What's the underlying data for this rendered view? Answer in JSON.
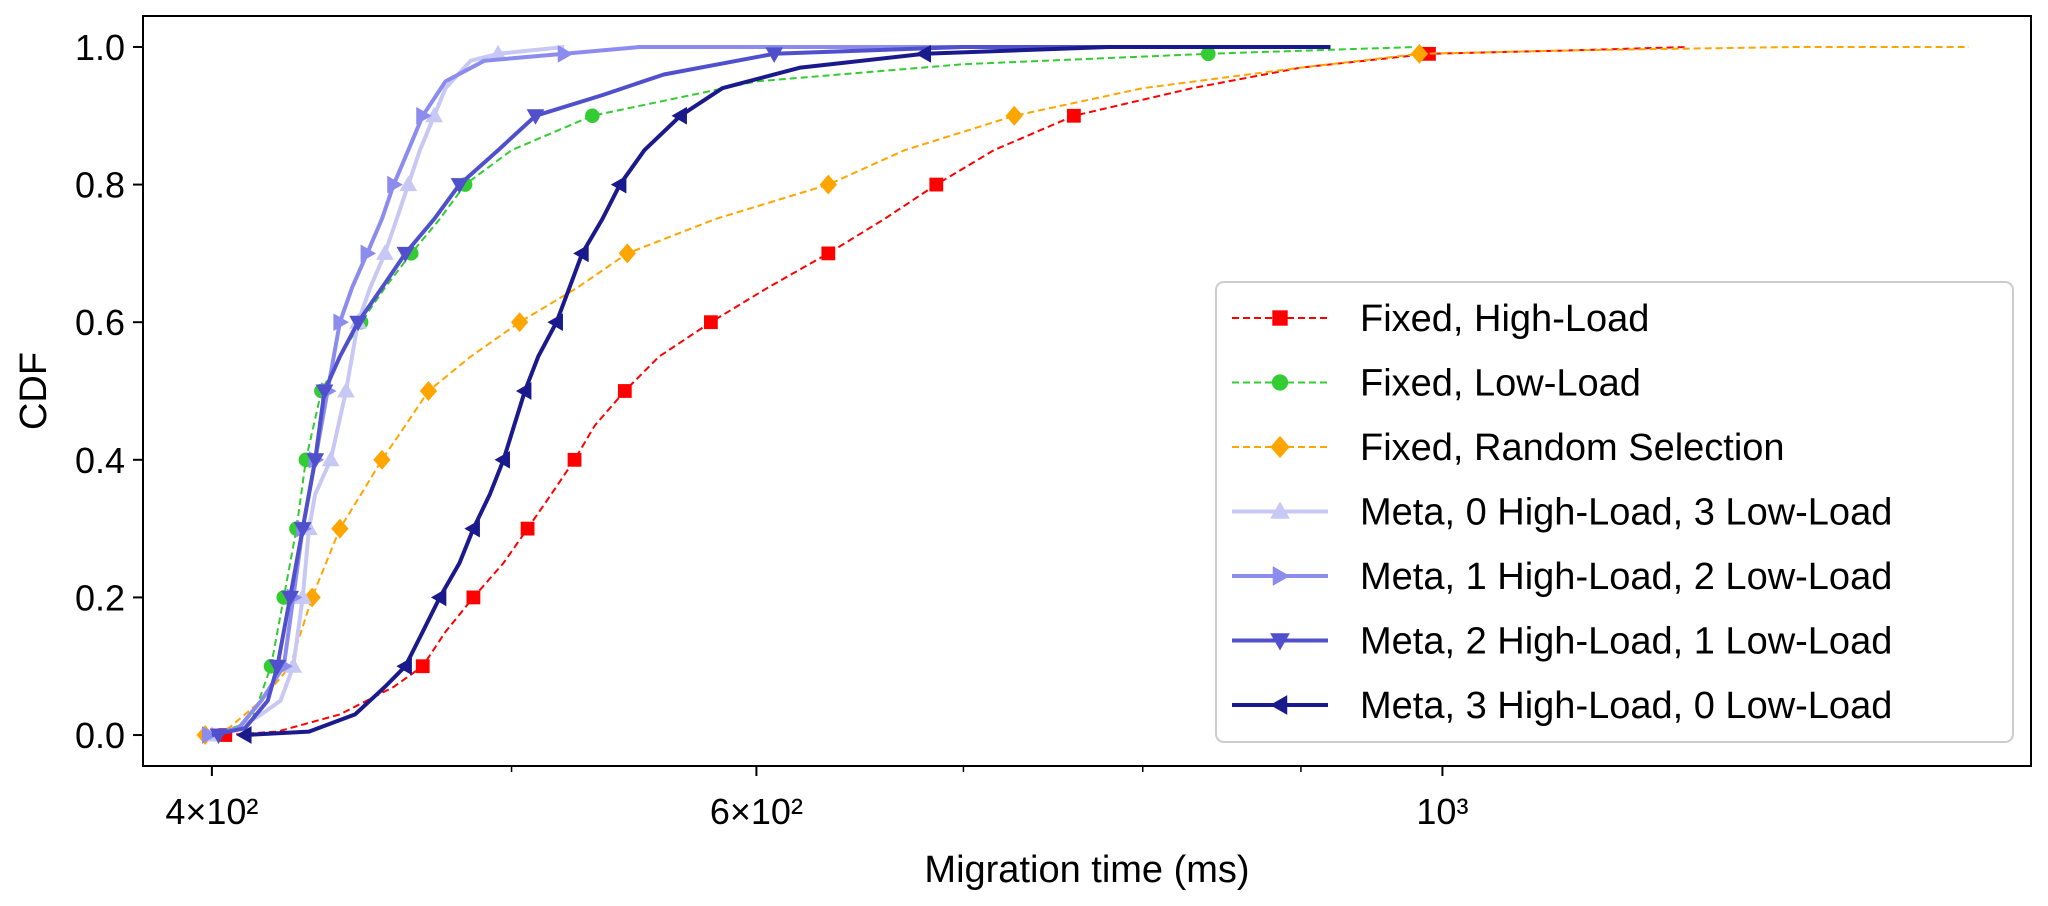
{
  "chart_data": {
    "type": "line",
    "title": "",
    "xlabel": "Migration time (ms)",
    "ylabel": "CDF",
    "xscale": "log",
    "xlim": [
      380,
      1550
    ],
    "ylim": [
      -0.045,
      1.045
    ],
    "grid": false,
    "legend_position": "center-right",
    "x_ticks": [
      {
        "value": 400,
        "label": "4×10²"
      },
      {
        "value": 600,
        "label": "6×10²"
      },
      {
        "value": 1000,
        "label": "10³"
      }
    ],
    "x_minor_ticks": [
      500,
      700,
      800,
      900
    ],
    "y_ticks": [
      {
        "value": 0.0,
        "label": "0.0"
      },
      {
        "value": 0.2,
        "label": "0.2"
      },
      {
        "value": 0.4,
        "label": "0.4"
      },
      {
        "value": 0.6,
        "label": "0.6"
      },
      {
        "value": 0.8,
        "label": "0.8"
      },
      {
        "value": 1.0,
        "label": "1.0"
      }
    ],
    "series": [
      {
        "name": "Fixed, High-Load",
        "color": "#ff0000",
        "dashed": true,
        "linewidth": 2,
        "marker": "square",
        "points": [
          [
            404,
            0
          ],
          [
            420,
            0.005
          ],
          [
            440,
            0.03
          ],
          [
            458,
            0.07
          ],
          [
            468,
            0.1
          ],
          [
            476,
            0.15
          ],
          [
            486,
            0.2
          ],
          [
            497,
            0.25
          ],
          [
            506,
            0.3
          ],
          [
            515,
            0.35
          ],
          [
            524,
            0.4
          ],
          [
            532,
            0.45
          ],
          [
            544,
            0.5
          ],
          [
            558,
            0.55
          ],
          [
            580,
            0.6
          ],
          [
            605,
            0.65
          ],
          [
            633,
            0.7
          ],
          [
            660,
            0.75
          ],
          [
            686,
            0.8
          ],
          [
            716,
            0.85
          ],
          [
            760,
            0.9
          ],
          [
            830,
            0.94
          ],
          [
            900,
            0.97
          ],
          [
            990,
            0.99
          ],
          [
            1100,
            0.995
          ],
          [
            1200,
            1.0
          ]
        ],
        "markers": [
          [
            404,
            0
          ],
          [
            468,
            0.1
          ],
          [
            486,
            0.2
          ],
          [
            506,
            0.3
          ],
          [
            524,
            0.4
          ],
          [
            544,
            0.5
          ],
          [
            580,
            0.6
          ],
          [
            633,
            0.7
          ],
          [
            686,
            0.8
          ],
          [
            760,
            0.9
          ],
          [
            990,
            0.99
          ]
        ]
      },
      {
        "name": "Fixed, Low-Load",
        "color": "#33cc33",
        "dashed": true,
        "linewidth": 2,
        "marker": "circle",
        "points": [
          [
            400,
            0
          ],
          [
            412,
            0.02
          ],
          [
            418,
            0.1
          ],
          [
            422,
            0.2
          ],
          [
            426,
            0.3
          ],
          [
            429,
            0.4
          ],
          [
            434,
            0.5
          ],
          [
            440,
            0.55
          ],
          [
            447,
            0.6
          ],
          [
            455,
            0.65
          ],
          [
            464,
            0.7
          ],
          [
            474,
            0.75
          ],
          [
            483,
            0.8
          ],
          [
            500,
            0.85
          ],
          [
            531,
            0.9
          ],
          [
            600,
            0.95
          ],
          [
            700,
            0.975
          ],
          [
            840,
            0.99
          ],
          [
            980,
            1.0
          ]
        ],
        "markers": [
          [
            418,
            0.1
          ],
          [
            422,
            0.2
          ],
          [
            426,
            0.3
          ],
          [
            429,
            0.4
          ],
          [
            434,
            0.5
          ],
          [
            447,
            0.6
          ],
          [
            464,
            0.7
          ],
          [
            483,
            0.8
          ],
          [
            531,
            0.9
          ],
          [
            840,
            0.99
          ]
        ]
      },
      {
        "name": "Fixed, Random Selection",
        "color": "#ffa500",
        "dashed": true,
        "linewidth": 2,
        "marker": "diamond",
        "points": [
          [
            398,
            0
          ],
          [
            405,
            0.01
          ],
          [
            415,
            0.05
          ],
          [
            424,
            0.1
          ],
          [
            431,
            0.2
          ],
          [
            440,
            0.3
          ],
          [
            447,
            0.35
          ],
          [
            454,
            0.4
          ],
          [
            462,
            0.45
          ],
          [
            470,
            0.5
          ],
          [
            485,
            0.55
          ],
          [
            503,
            0.6
          ],
          [
            525,
            0.65
          ],
          [
            545,
            0.7
          ],
          [
            582,
            0.75
          ],
          [
            633,
            0.8
          ],
          [
            670,
            0.85
          ],
          [
            727,
            0.9
          ],
          [
            800,
            0.94
          ],
          [
            900,
            0.97
          ],
          [
            983,
            0.99
          ],
          [
            1100,
            0.995
          ],
          [
            1300,
            1.0
          ],
          [
            1480,
            1.0
          ]
        ],
        "markers": [
          [
            398,
            0
          ],
          [
            431,
            0.2
          ],
          [
            440,
            0.3
          ],
          [
            454,
            0.4
          ],
          [
            470,
            0.5
          ],
          [
            503,
            0.6
          ],
          [
            545,
            0.7
          ],
          [
            633,
            0.8
          ],
          [
            727,
            0.9
          ],
          [
            983,
            0.99
          ]
        ]
      },
      {
        "name": "Meta, 0 High-Load, 3 Low-Load",
        "color": "#c8c8f5",
        "dashed": false,
        "linewidth": 4,
        "marker": "triangle-up",
        "points": [
          [
            398,
            0
          ],
          [
            408,
            0.01
          ],
          [
            415,
            0.03
          ],
          [
            421,
            0.05
          ],
          [
            425,
            0.1
          ],
          [
            428,
            0.2
          ],
          [
            430,
            0.3
          ],
          [
            432,
            0.35
          ],
          [
            437,
            0.4
          ],
          [
            442,
            0.5
          ],
          [
            446,
            0.6
          ],
          [
            450,
            0.65
          ],
          [
            455,
            0.7
          ],
          [
            459,
            0.75
          ],
          [
            463,
            0.8
          ],
          [
            467,
            0.85
          ],
          [
            472,
            0.9
          ],
          [
            476,
            0.94
          ],
          [
            485,
            0.98
          ],
          [
            495,
            0.99
          ],
          [
            520,
            1.0
          ]
        ],
        "markers": [
          [
            400,
            0
          ],
          [
            425,
            0.1
          ],
          [
            428,
            0.2
          ],
          [
            430,
            0.3
          ],
          [
            437,
            0.4
          ],
          [
            442,
            0.5
          ],
          [
            446,
            0.6
          ],
          [
            455,
            0.7
          ],
          [
            463,
            0.8
          ],
          [
            472,
            0.9
          ],
          [
            495,
            0.99
          ]
        ]
      },
      {
        "name": "Meta, 1 High-Load, 2 Low-Load",
        "color": "#8c8cee",
        "dashed": false,
        "linewidth": 4,
        "marker": "triangle-right",
        "points": [
          [
            398,
            0
          ],
          [
            408,
            0.01
          ],
          [
            415,
            0.05
          ],
          [
            422,
            0.1
          ],
          [
            425,
            0.2
          ],
          [
            428,
            0.3
          ],
          [
            432,
            0.4
          ],
          [
            436,
            0.5
          ],
          [
            440,
            0.6
          ],
          [
            444,
            0.65
          ],
          [
            449,
            0.7
          ],
          [
            454,
            0.75
          ],
          [
            458,
            0.8
          ],
          [
            463,
            0.85
          ],
          [
            468,
            0.9
          ],
          [
            476,
            0.95
          ],
          [
            490,
            0.98
          ],
          [
            520,
            0.99
          ],
          [
            550,
            1.0
          ],
          [
            700,
            1.0
          ]
        ],
        "markers": [
          [
            399,
            0
          ],
          [
            422,
            0.1
          ],
          [
            425,
            0.2
          ],
          [
            428,
            0.3
          ],
          [
            432,
            0.4
          ],
          [
            436,
            0.5
          ],
          [
            440,
            0.6
          ],
          [
            449,
            0.7
          ],
          [
            458,
            0.8
          ],
          [
            468,
            0.9
          ],
          [
            520,
            0.99
          ]
        ]
      },
      {
        "name": "Meta, 2 High-Load, 1 Low-Load",
        "color": "#5050cc",
        "dashed": false,
        "linewidth": 4,
        "marker": "triangle-down",
        "points": [
          [
            400,
            0
          ],
          [
            410,
            0.01
          ],
          [
            417,
            0.05
          ],
          [
            420,
            0.1
          ],
          [
            424,
            0.2
          ],
          [
            428,
            0.3
          ],
          [
            432,
            0.4
          ],
          [
            435,
            0.5
          ],
          [
            440,
            0.55
          ],
          [
            446,
            0.6
          ],
          [
            454,
            0.65
          ],
          [
            462,
            0.7
          ],
          [
            472,
            0.75
          ],
          [
            481,
            0.8
          ],
          [
            495,
            0.85
          ],
          [
            509,
            0.9
          ],
          [
            535,
            0.93
          ],
          [
            560,
            0.96
          ],
          [
            608,
            0.99
          ],
          [
            700,
            1.0
          ],
          [
            780,
            1.0
          ]
        ],
        "markers": [
          [
            402,
            0
          ],
          [
            420,
            0.1
          ],
          [
            424,
            0.2
          ],
          [
            428,
            0.3
          ],
          [
            432,
            0.4
          ],
          [
            435,
            0.5
          ],
          [
            446,
            0.6
          ],
          [
            462,
            0.7
          ],
          [
            481,
            0.8
          ],
          [
            509,
            0.9
          ],
          [
            608,
            0.99
          ]
        ]
      },
      {
        "name": "Meta, 3 High-Load, 0 Low-Load",
        "color": "#1a1a8c",
        "dashed": false,
        "linewidth": 4,
        "marker": "triangle-left",
        "points": [
          [
            410,
            0
          ],
          [
            430,
            0.005
          ],
          [
            445,
            0.03
          ],
          [
            455,
            0.07
          ],
          [
            462,
            0.1
          ],
          [
            468,
            0.15
          ],
          [
            474,
            0.2
          ],
          [
            481,
            0.25
          ],
          [
            486,
            0.3
          ],
          [
            492,
            0.35
          ],
          [
            497,
            0.4
          ],
          [
            501,
            0.45
          ],
          [
            505,
            0.5
          ],
          [
            510,
            0.55
          ],
          [
            517,
            0.6
          ],
          [
            522,
            0.65
          ],
          [
            527,
            0.7
          ],
          [
            535,
            0.75
          ],
          [
            542,
            0.8
          ],
          [
            552,
            0.85
          ],
          [
            567,
            0.9
          ],
          [
            585,
            0.94
          ],
          [
            620,
            0.97
          ],
          [
            680,
            0.99
          ],
          [
            780,
            1.0
          ],
          [
            920,
            1.0
          ]
        ],
        "markers": [
          [
            410,
            0
          ],
          [
            462,
            0.1
          ],
          [
            474,
            0.2
          ],
          [
            486,
            0.3
          ],
          [
            497,
            0.4
          ],
          [
            505,
            0.5
          ],
          [
            517,
            0.6
          ],
          [
            527,
            0.7
          ],
          [
            542,
            0.8
          ],
          [
            567,
            0.9
          ],
          [
            680,
            0.99
          ]
        ]
      }
    ]
  }
}
